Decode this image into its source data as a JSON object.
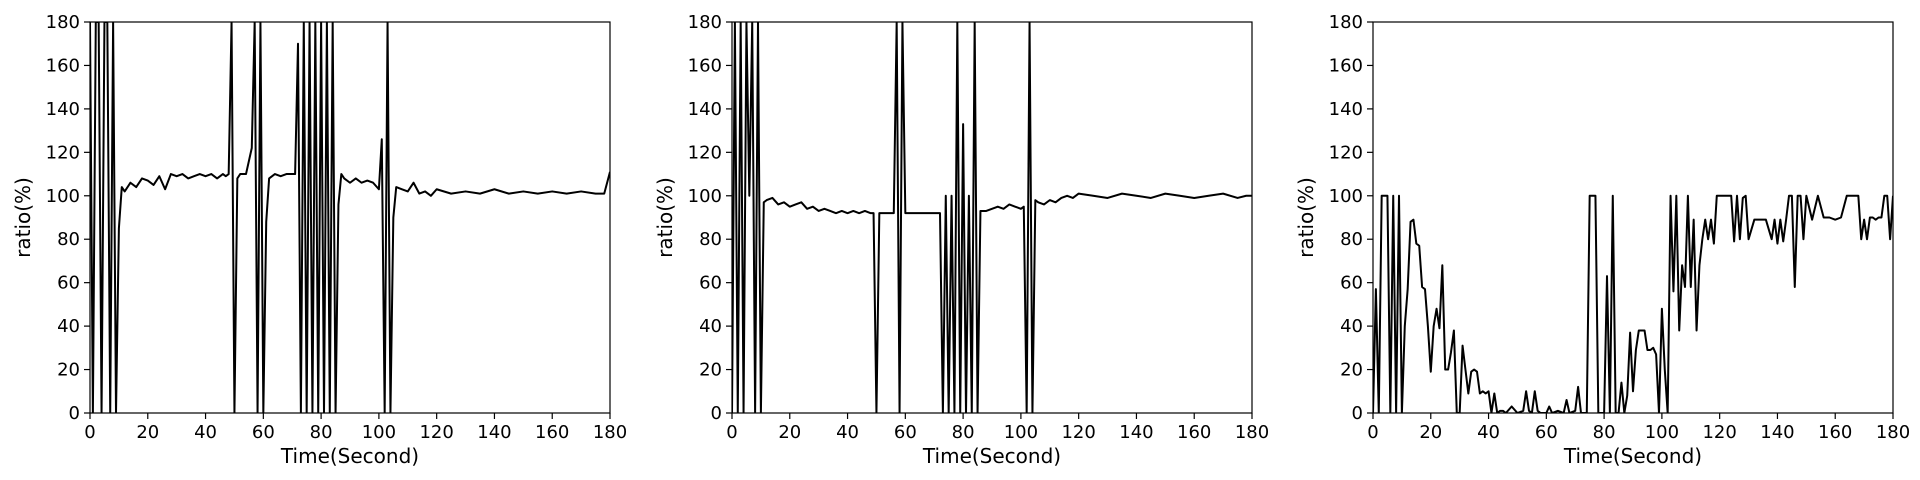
{
  "chart_data": [
    {
      "type": "line",
      "title": "",
      "xlabel": "Time(Second)",
      "ylabel": "ratio(%)",
      "xlim": [
        0,
        180
      ],
      "ylim": [
        0,
        180
      ],
      "xticks": [
        0,
        20,
        40,
        60,
        80,
        100,
        120,
        140,
        160,
        180
      ],
      "yticks": [
        0,
        20,
        40,
        60,
        80,
        100,
        120,
        140,
        160,
        180
      ],
      "grid": false,
      "line_color": "#000000",
      "series": [
        {
          "x": [
            0,
            1,
            2,
            3,
            4,
            5,
            6,
            7,
            8,
            9,
            10,
            11,
            12,
            14,
            16,
            18,
            20,
            22,
            24,
            26,
            28,
            30,
            32,
            34,
            36,
            38,
            40,
            42,
            44,
            46,
            47,
            48,
            49,
            50,
            51,
            52,
            54,
            56,
            57,
            58,
            59,
            60,
            61,
            62,
            64,
            66,
            68,
            70,
            71,
            72,
            73,
            74,
            75,
            76,
            77,
            78,
            79,
            80,
            81,
            82,
            83,
            84,
            85,
            86,
            87,
            88,
            90,
            92,
            94,
            96,
            98,
            100,
            101,
            102,
            103,
            104,
            105,
            106,
            108,
            110,
            112,
            114,
            116,
            118,
            120,
            125,
            130,
            135,
            140,
            145,
            150,
            155,
            160,
            165,
            170,
            175,
            178,
            180
          ],
          "y": [
            180,
            0,
            180,
            180,
            0,
            180,
            180,
            0,
            180,
            0,
            85,
            104,
            102,
            106,
            104,
            108,
            107,
            105,
            109,
            103,
            110,
            109,
            110,
            108,
            109,
            110,
            109,
            110,
            108,
            110,
            109,
            110,
            180,
            0,
            108,
            110,
            110,
            122,
            180,
            0,
            180,
            0,
            88,
            108,
            110,
            109,
            110,
            110,
            110,
            170,
            0,
            180,
            0,
            180,
            0,
            180,
            0,
            180,
            0,
            180,
            0,
            180,
            0,
            96,
            110,
            108,
            106,
            108,
            106,
            107,
            106,
            103,
            126,
            0,
            180,
            0,
            90,
            104,
            103,
            102,
            106,
            101,
            102,
            100,
            103,
            101,
            102,
            101,
            103,
            101,
            102,
            101,
            102,
            101,
            102,
            101,
            101,
            111
          ]
        }
      ]
    },
    {
      "type": "line",
      "title": "",
      "xlabel": "Time(Second)",
      "ylabel": "ratio(%)",
      "xlim": [
        0,
        180
      ],
      "ylim": [
        0,
        180
      ],
      "xticks": [
        0,
        20,
        40,
        60,
        80,
        100,
        120,
        140,
        160,
        180
      ],
      "yticks": [
        0,
        20,
        40,
        60,
        80,
        100,
        120,
        140,
        160,
        180
      ],
      "grid": false,
      "line_color": "#000000",
      "series": [
        {
          "x": [
            0,
            1,
            2,
            3,
            4,
            5,
            6,
            7,
            8,
            9,
            10,
            11,
            12,
            14,
            16,
            18,
            20,
            22,
            24,
            26,
            28,
            30,
            32,
            34,
            36,
            38,
            40,
            42,
            44,
            46,
            48,
            49,
            50,
            51,
            52,
            54,
            56,
            57,
            58,
            59,
            60,
            61,
            62,
            64,
            66,
            68,
            70,
            72,
            73,
            74,
            75,
            76,
            77,
            78,
            79,
            80,
            81,
            82,
            83,
            84,
            85,
            86,
            88,
            90,
            92,
            94,
            96,
            98,
            100,
            101,
            102,
            103,
            104,
            105,
            106,
            108,
            110,
            112,
            114,
            116,
            118,
            120,
            125,
            130,
            135,
            140,
            145,
            150,
            155,
            160,
            165,
            170,
            175,
            178,
            180
          ],
          "y": [
            0,
            180,
            0,
            180,
            0,
            180,
            100,
            180,
            0,
            180,
            0,
            97,
            98,
            99,
            96,
            97,
            95,
            96,
            97,
            94,
            95,
            93,
            94,
            93,
            92,
            93,
            92,
            93,
            92,
            93,
            92,
            92,
            0,
            92,
            92,
            92,
            92,
            180,
            0,
            180,
            92,
            92,
            92,
            92,
            92,
            92,
            92,
            92,
            0,
            100,
            0,
            100,
            0,
            180,
            0,
            133,
            0,
            100,
            0,
            180,
            0,
            93,
            93,
            94,
            95,
            94,
            96,
            95,
            94,
            95,
            0,
            180,
            0,
            98,
            97,
            96,
            98,
            97,
            99,
            100,
            99,
            101,
            100,
            99,
            101,
            100,
            99,
            101,
            100,
            99,
            100,
            101,
            99,
            100,
            100
          ]
        }
      ]
    },
    {
      "type": "line",
      "title": "",
      "xlabel": "Time(Second)",
      "ylabel": "ratio(%)",
      "xlim": [
        0,
        180
      ],
      "ylim": [
        0,
        180
      ],
      "xticks": [
        0,
        20,
        40,
        60,
        80,
        100,
        120,
        140,
        160,
        180
      ],
      "yticks": [
        0,
        20,
        40,
        60,
        80,
        100,
        120,
        140,
        160,
        180
      ],
      "grid": false,
      "line_color": "#000000",
      "series": [
        {
          "x": [
            0,
            1,
            2,
            3,
            4,
            5,
            6,
            7,
            8,
            9,
            10,
            11,
            12,
            13,
            14,
            15,
            16,
            17,
            18,
            19,
            20,
            21,
            22,
            23,
            24,
            25,
            26,
            27,
            28,
            29,
            30,
            31,
            32,
            33,
            34,
            35,
            36,
            37,
            38,
            39,
            40,
            41,
            42,
            43,
            44,
            45,
            46,
            48,
            50,
            52,
            53,
            54,
            55,
            56,
            57,
            58,
            60,
            61,
            62,
            64,
            66,
            67,
            68,
            70,
            71,
            72,
            73,
            74,
            75,
            76,
            77,
            78,
            79,
            80,
            81,
            82,
            83,
            84,
            85,
            86,
            87,
            88,
            89,
            90,
            91,
            92,
            93,
            94,
            95,
            96,
            97,
            98,
            99,
            100,
            101,
            102,
            103,
            104,
            105,
            106,
            107,
            108,
            109,
            110,
            111,
            112,
            113,
            114,
            115,
            116,
            117,
            118,
            119,
            120,
            122,
            124,
            125,
            126,
            127,
            128,
            129,
            130,
            132,
            134,
            136,
            138,
            139,
            140,
            141,
            142,
            143,
            144,
            145,
            146,
            147,
            148,
            149,
            150,
            152,
            154,
            156,
            158,
            160,
            162,
            164,
            166,
            168,
            169,
            170,
            171,
            172,
            173,
            174,
            175,
            176,
            177,
            178,
            179,
            180
          ],
          "y": [
            0,
            57,
            0,
            100,
            100,
            100,
            0,
            100,
            0,
            100,
            0,
            40,
            57,
            88,
            89,
            78,
            77,
            58,
            57,
            40,
            19,
            40,
            48,
            39,
            68,
            20,
            20,
            28,
            38,
            0,
            0,
            31,
            20,
            9,
            19,
            20,
            19,
            9,
            10,
            9,
            10,
            0,
            9,
            0,
            1,
            1,
            0,
            3,
            0,
            1,
            10,
            1,
            0,
            10,
            1,
            0,
            0,
            3,
            0,
            1,
            0,
            6,
            0,
            1,
            12,
            0,
            0,
            0,
            100,
            100,
            100,
            0,
            0,
            0,
            63,
            0,
            100,
            0,
            0,
            14,
            0,
            8,
            37,
            10,
            29,
            38,
            38,
            38,
            29,
            29,
            30,
            27,
            0,
            48,
            20,
            0,
            100,
            56,
            100,
            38,
            68,
            58,
            100,
            58,
            89,
            38,
            68,
            80,
            89,
            80,
            89,
            78,
            100,
            100,
            100,
            100,
            79,
            100,
            80,
            99,
            100,
            80,
            89,
            89,
            89,
            80,
            89,
            78,
            89,
            79,
            89,
            100,
            100,
            58,
            100,
            100,
            80,
            100,
            89,
            100,
            90,
            90,
            89,
            90,
            100,
            100,
            100,
            80,
            89,
            80,
            90,
            90,
            89,
            90,
            90,
            100,
            100,
            80,
            100
          ]
        }
      ]
    }
  ]
}
